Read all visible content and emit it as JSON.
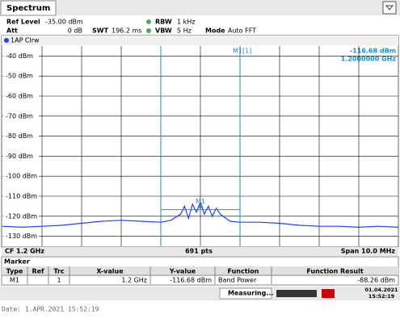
{
  "tab": "Spectrum",
  "settings": {
    "ref_level_label": "Ref Level",
    "ref_level": "-35.00 dBm",
    "att_label": "Att",
    "att": "0 dB",
    "swt_label": "SWT",
    "swt": "196.2 ms",
    "rbw_label": "RBW",
    "rbw": "1 kHz",
    "vbw_label": "VBW",
    "vbw": "5 Hz",
    "mode_label": "Mode",
    "mode": "Auto FFT"
  },
  "chart_data": {
    "type": "line",
    "trace_label": "1AP Clrw",
    "x": [
      1195,
      1195.5,
      1196,
      1196.5,
      1197,
      1197.5,
      1198,
      1198.5,
      1199,
      1199.25,
      1199.5,
      1199.6,
      1199.7,
      1199.8,
      1199.9,
      1200,
      1200.1,
      1200.2,
      1200.3,
      1200.4,
      1200.5,
      1200.75,
      1201,
      1201.5,
      1202,
      1202.5,
      1203,
      1203.5,
      1204,
      1204.5,
      1205
    ],
    "series": [
      {
        "name": "1",
        "color": "#2040ff",
        "values": [
          -125,
          -125.5,
          -125,
          -124.5,
          -123.5,
          -122.5,
          -122,
          -122.5,
          -123,
          -122,
          -119,
          -115,
          -121,
          -114,
          -118,
          -113,
          -119,
          -115,
          -120,
          -116,
          -119,
          -122.5,
          -123,
          -123,
          -123.5,
          -124.5,
          -125,
          -125,
          -125.5,
          -125,
          -125.5
        ]
      }
    ],
    "xlim": [
      1195,
      1205
    ],
    "x_divisions": 10,
    "ylim": [
      -135,
      -35
    ],
    "yticks": [
      {
        "value": -40,
        "label": "-40 dBm"
      },
      {
        "value": -50,
        "label": "-50 dBm"
      },
      {
        "value": -60,
        "label": "-60 dBm"
      },
      {
        "value": -70,
        "label": "-70 dBm"
      },
      {
        "value": -80,
        "label": "-80 dBm"
      },
      {
        "value": -90,
        "label": "-90 dBm"
      },
      {
        "value": -100,
        "label": "-100 dBm"
      },
      {
        "value": -110,
        "label": "-110 dBm"
      },
      {
        "value": -120,
        "label": "-120 dBm"
      },
      {
        "value": -130,
        "label": "-130 dBm"
      }
    ],
    "grid": true,
    "band_limits": [
      1199,
      1201
    ],
    "marker": {
      "label": "M1",
      "x": 1200,
      "y": -116.68
    },
    "marker_readout": {
      "name": "M1[1]",
      "level": "-116.68 dBm",
      "frequency": "1.2000000 GHz"
    },
    "footer": {
      "center": "CF 1.2 GHz",
      "points": "691 pts",
      "span": "Span 10.0 MHz"
    }
  },
  "marker_table": {
    "title": "Marker",
    "columns": [
      "Type",
      "Ref",
      "Trc",
      "X-value",
      "Y-value",
      "Function",
      "Function Result"
    ],
    "row": {
      "type": "M1",
      "trc": "1",
      "x_value": "1.2 GHz",
      "y_value": "-116.68 dBm",
      "function": "Band Power",
      "result": "-88.26 dBm"
    }
  },
  "status": {
    "message": "Measuring...",
    "date": "01.04.2021",
    "time": "15:52:19"
  },
  "footer_note": "Date: 1.APR.2021  15:52:19"
}
